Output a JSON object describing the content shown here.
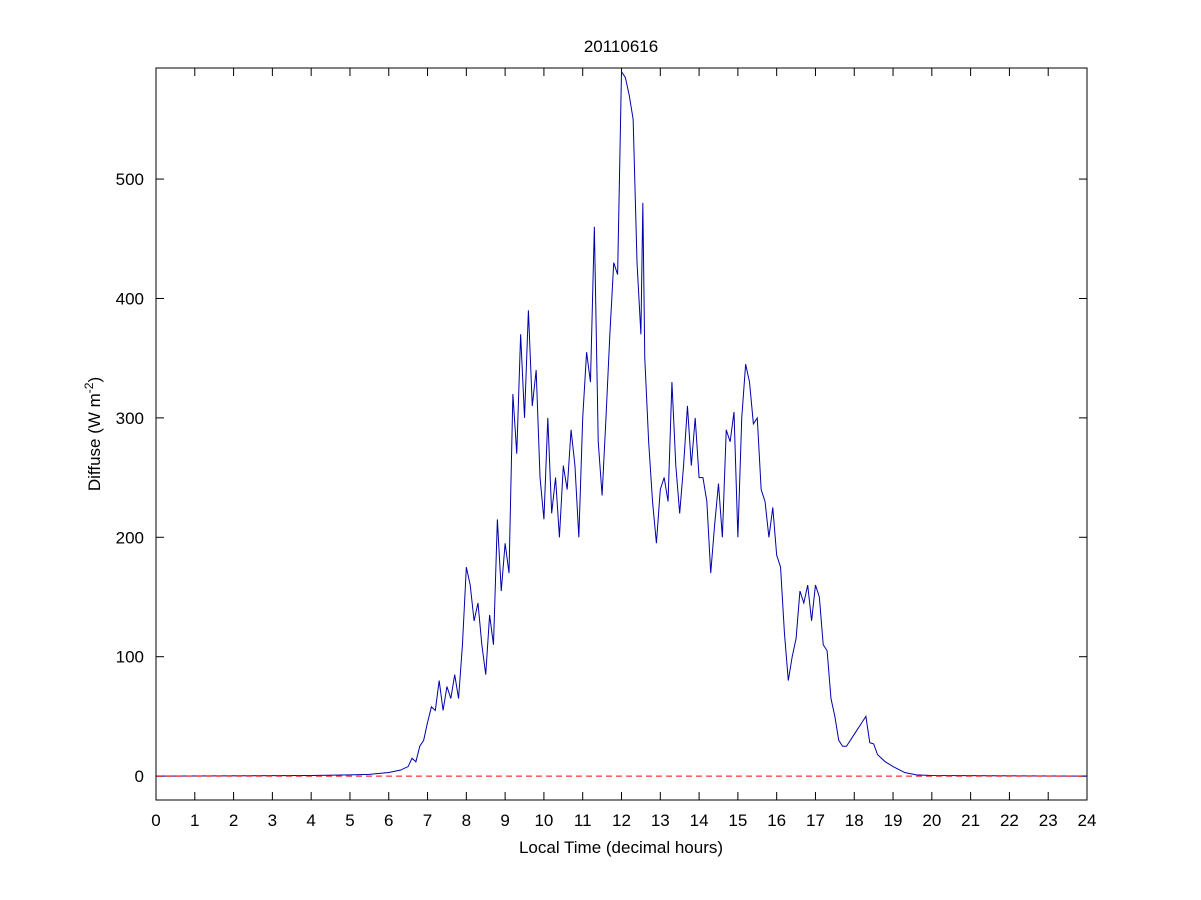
{
  "chart_data": {
    "type": "line",
    "title": "20110616",
    "xlabel": "Local Time (decimal hours)",
    "ylabel": {
      "text": "Diffuse (W m",
      "superscript": "-2",
      "suffix": ")"
    },
    "color": "#0000aa",
    "reference_line": {
      "value": 0,
      "color": "#ff0000",
      "style": "dashed"
    },
    "xlim": [
      0,
      24
    ],
    "xticks": [
      0,
      1,
      2,
      3,
      4,
      5,
      6,
      7,
      8,
      9,
      10,
      11,
      12,
      13,
      14,
      15,
      16,
      17,
      18,
      19,
      20,
      21,
      22,
      23,
      24
    ],
    "ylim": [
      -20,
      593
    ],
    "yticks": [
      0,
      100,
      200,
      300,
      400,
      500
    ],
    "grid": false,
    "x": [
      0,
      4,
      5,
      5.5,
      6,
      6.3,
      6.5,
      6.6,
      6.7,
      6.8,
      6.9,
      7.0,
      7.1,
      7.2,
      7.3,
      7.4,
      7.5,
      7.6,
      7.7,
      7.8,
      7.9,
      8.0,
      8.1,
      8.2,
      8.3,
      8.4,
      8.5,
      8.6,
      8.7,
      8.8,
      8.9,
      9.0,
      9.1,
      9.2,
      9.3,
      9.4,
      9.5,
      9.6,
      9.7,
      9.8,
      9.9,
      10.0,
      10.1,
      10.2,
      10.3,
      10.4,
      10.5,
      10.6,
      10.7,
      10.8,
      10.9,
      11.0,
      11.1,
      11.2,
      11.3,
      11.4,
      11.5,
      11.6,
      11.7,
      11.8,
      11.9,
      12.0,
      12.1,
      12.2,
      12.3,
      12.4,
      12.5,
      12.55,
      12.6,
      12.7,
      12.8,
      12.9,
      13.0,
      13.1,
      13.2,
      13.3,
      13.4,
      13.5,
      13.6,
      13.7,
      13.8,
      13.9,
      14.0,
      14.1,
      14.2,
      14.3,
      14.4,
      14.5,
      14.6,
      14.7,
      14.8,
      14.9,
      15.0,
      15.1,
      15.2,
      15.3,
      15.4,
      15.5,
      15.6,
      15.7,
      15.8,
      15.9,
      16.0,
      16.1,
      16.2,
      16.3,
      16.4,
      16.5,
      16.6,
      16.7,
      16.8,
      16.9,
      17.0,
      17.1,
      17.2,
      17.3,
      17.4,
      17.5,
      17.6,
      17.7,
      17.8,
      18.0,
      18.2,
      18.3,
      18.4,
      18.5,
      18.6,
      18.8,
      19.0,
      19.3,
      19.6,
      20,
      24
    ],
    "values": [
      0,
      0.5,
      1,
      1.5,
      3,
      5,
      8,
      15,
      12,
      25,
      30,
      45,
      58,
      55,
      80,
      55,
      75,
      65,
      85,
      65,
      110,
      175,
      160,
      130,
      145,
      110,
      85,
      135,
      110,
      215,
      155,
      195,
      170,
      320,
      270,
      370,
      300,
      390,
      310,
      340,
      250,
      215,
      300,
      220,
      250,
      200,
      260,
      240,
      290,
      260,
      200,
      300,
      355,
      330,
      460,
      280,
      235,
      300,
      370,
      430,
      420,
      590,
      585,
      570,
      550,
      430,
      370,
      480,
      350,
      280,
      230,
      195,
      240,
      250,
      230,
      330,
      260,
      220,
      260,
      310,
      260,
      300,
      250,
      250,
      230,
      170,
      210,
      245,
      200,
      290,
      280,
      305,
      200,
      300,
      345,
      330,
      295,
      300,
      240,
      230,
      200,
      225,
      185,
      175,
      120,
      80,
      100,
      115,
      155,
      145,
      160,
      130,
      160,
      150,
      110,
      105,
      65,
      50,
      30,
      25,
      25,
      35,
      45,
      50,
      28,
      27,
      18,
      12,
      8,
      3,
      1,
      0.5,
      0
    ]
  }
}
